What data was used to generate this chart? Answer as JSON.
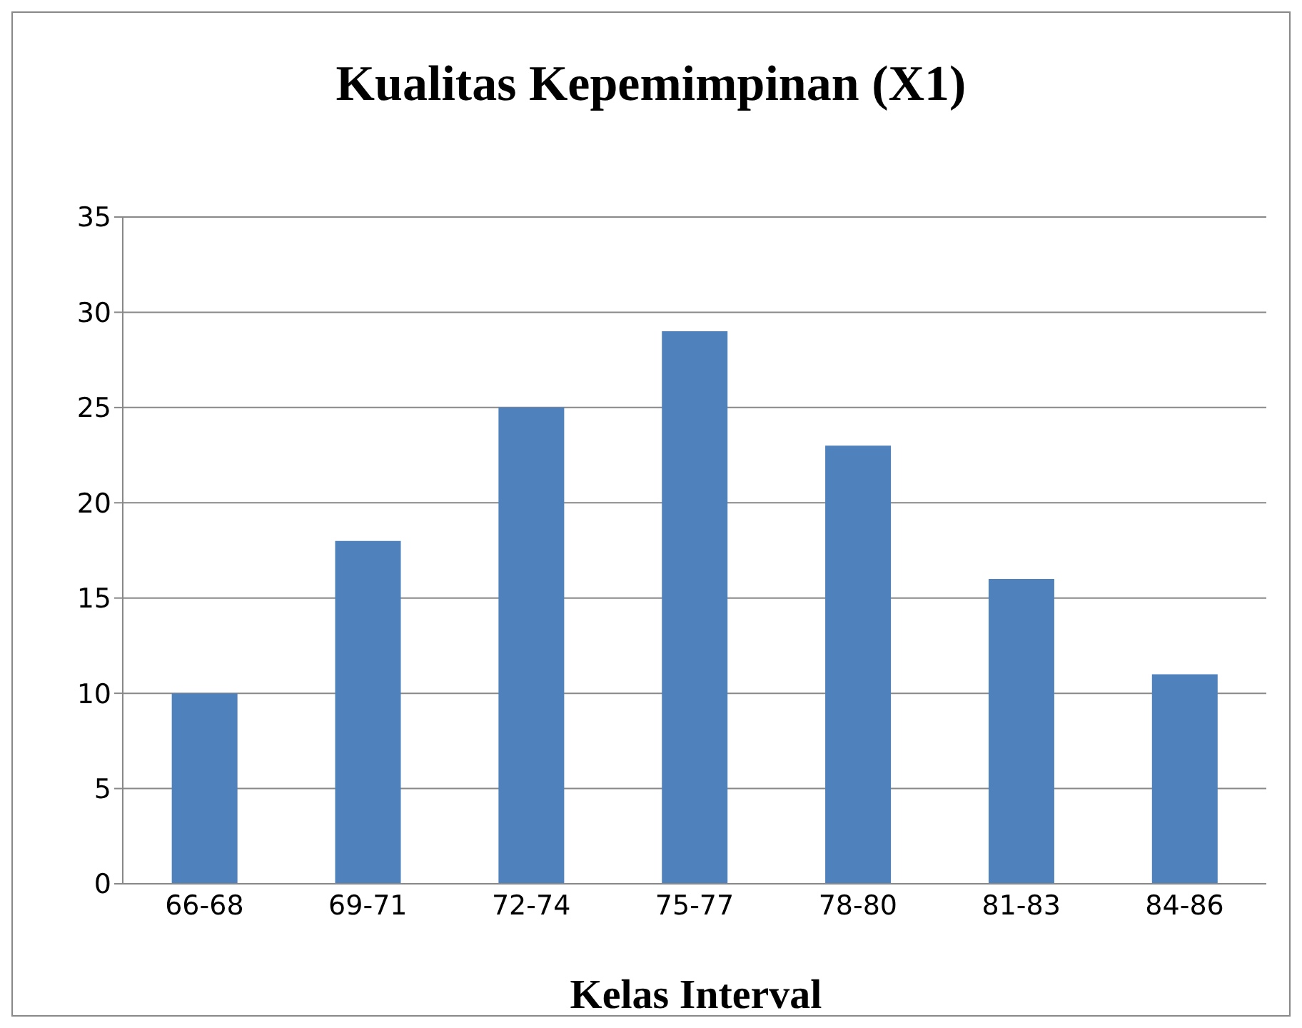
{
  "chart_data": {
    "type": "bar",
    "title": "Kualitas Kepemimpinan (X1)",
    "xlabel": "Kelas Interval",
    "categories": [
      "66-68",
      "69-71",
      "72-74",
      "75-77",
      "78-80",
      "81-83",
      "84-86"
    ],
    "values": [
      10,
      18,
      25,
      29,
      23,
      16,
      11
    ],
    "color": "#4f81bd",
    "ylim": [
      0,
      35
    ],
    "yticks": [
      0,
      5,
      10,
      15,
      20,
      25,
      30,
      35
    ],
    "grid": "y"
  }
}
